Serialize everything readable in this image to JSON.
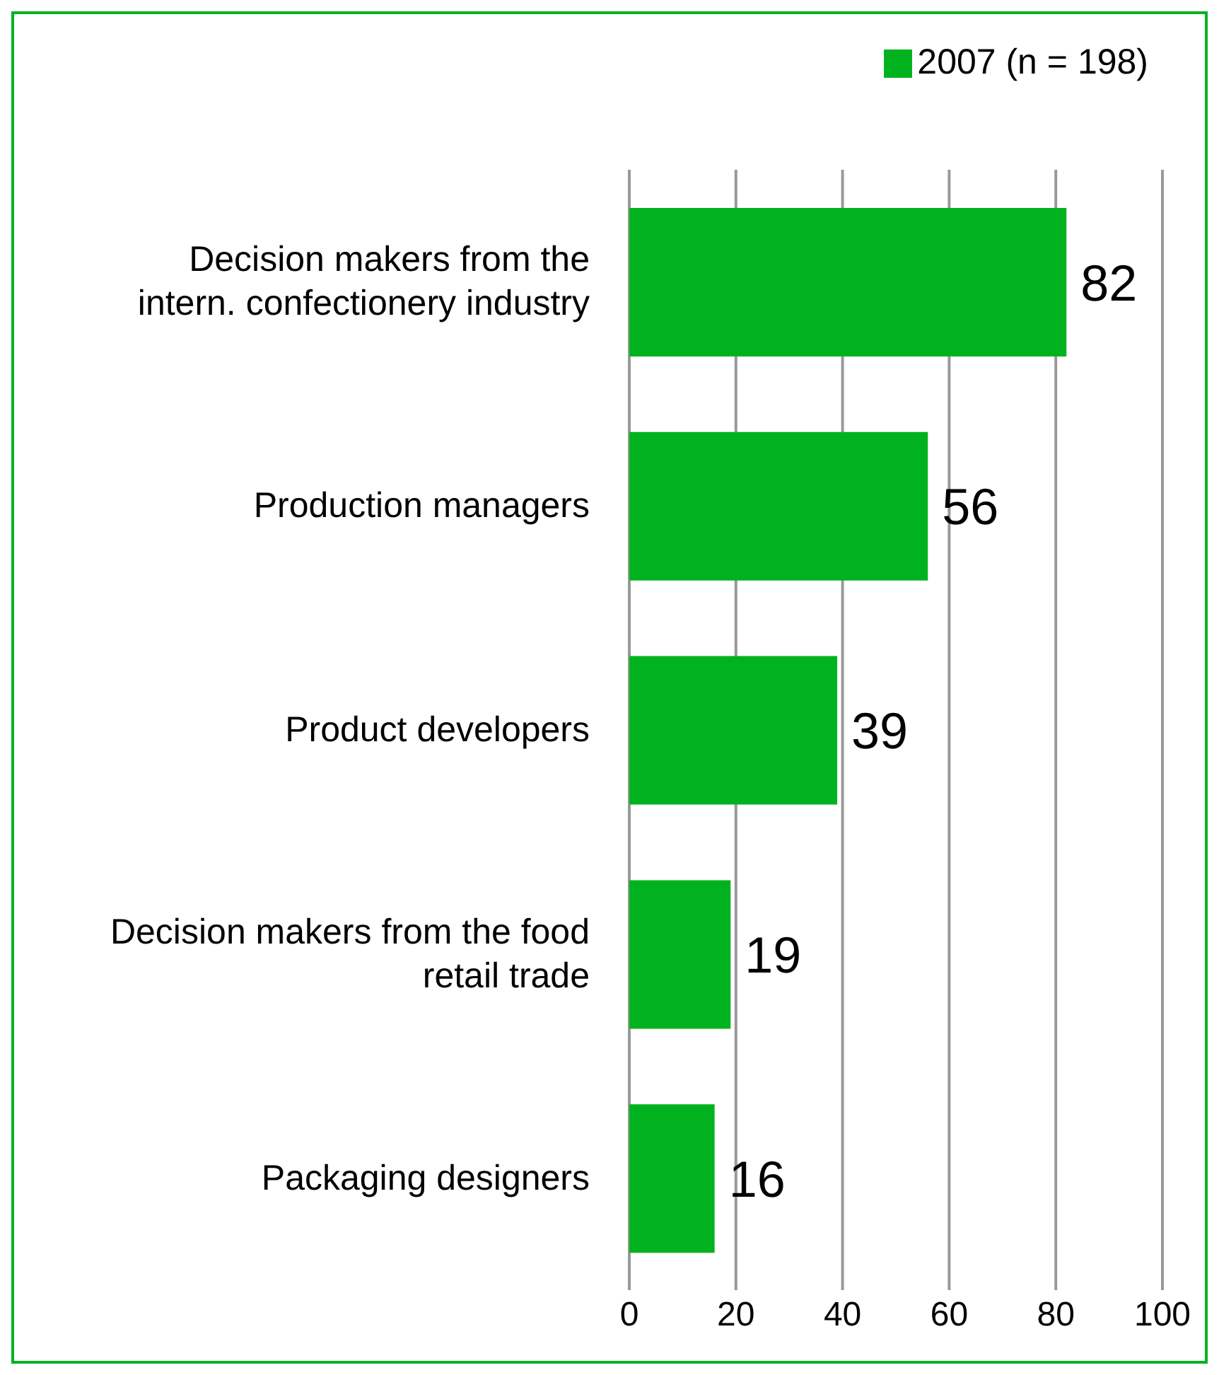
{
  "chart_data": {
    "type": "bar",
    "orientation": "horizontal",
    "categories": [
      "Decision makers from the intern. confectionery industry",
      "Production managers",
      "Product developers",
      "Decision makers from the food retail trade",
      "Packaging designers"
    ],
    "series": [
      {
        "name": "2007 (n = 198)",
        "color": "#00b31e",
        "values": [
          82,
          56,
          39,
          19,
          16
        ]
      }
    ],
    "xlim": [
      0,
      100
    ],
    "xticks": [
      0,
      20,
      40,
      60,
      80,
      100
    ],
    "grid": "x",
    "legend": "top right",
    "data_labels": true
  }
}
